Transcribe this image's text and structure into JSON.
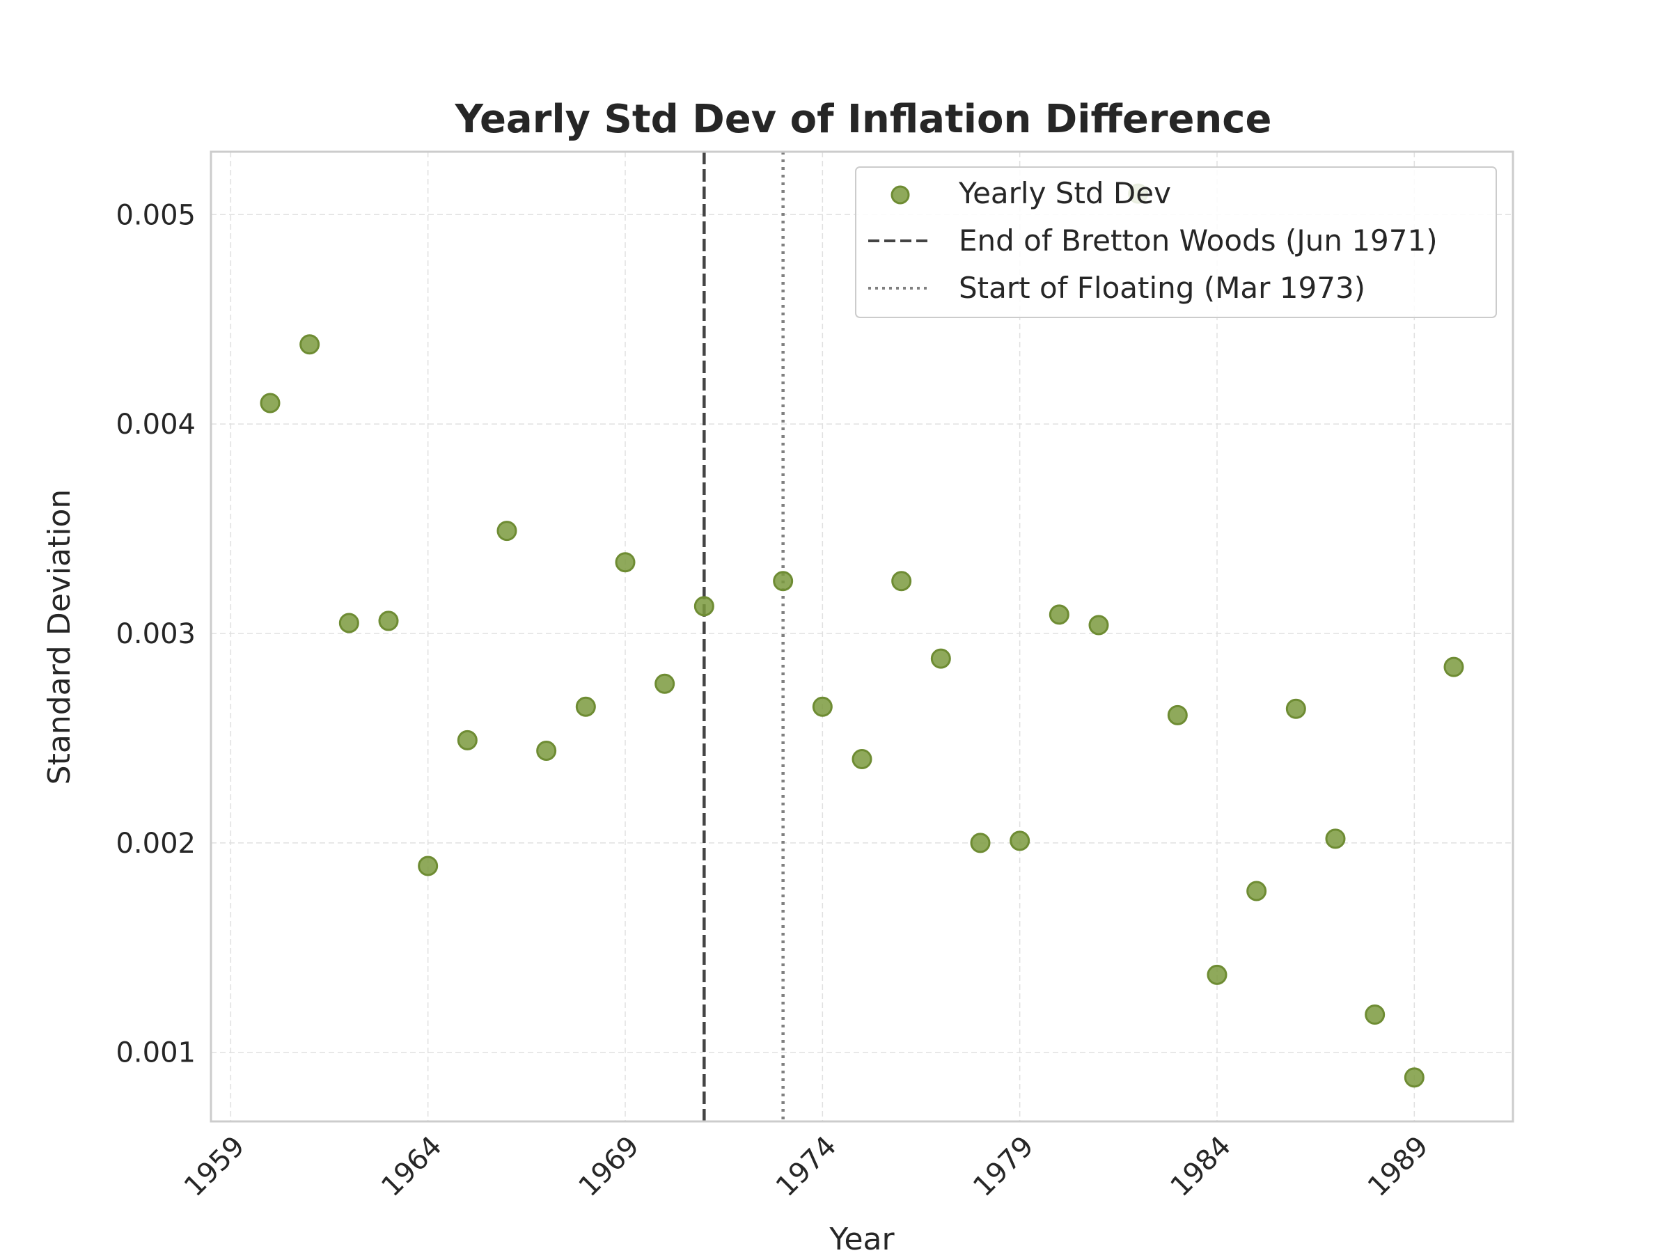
{
  "chart_data": {
    "type": "scatter",
    "title": "Yearly Std Dev of Inflation Difference",
    "xlabel": "Year",
    "ylabel": "Standard Deviation",
    "xlim": [
      1958.5,
      1991.5
    ],
    "ylim": [
      0.00067,
      0.0053
    ],
    "xticks": [
      "1959",
      "1964",
      "1969",
      "1974",
      "1979",
      "1984",
      "1989"
    ],
    "yticks": [
      "0.001",
      "0.002",
      "0.003",
      "0.004",
      "0.005"
    ],
    "grid": true,
    "legend_position": "top-right",
    "series": [
      {
        "name": "Yearly Std Dev",
        "color": "#7b9a3e",
        "x": [
          1960,
          1961,
          1962,
          1963,
          1964,
          1965,
          1966,
          1967,
          1968,
          1969,
          1970,
          1971,
          1973,
          1974,
          1975,
          1976,
          1977,
          1978,
          1979,
          1980,
          1981,
          1982,
          1983,
          1984,
          1985,
          1986,
          1987,
          1988,
          1989,
          1990
        ],
        "y": [
          0.0041,
          0.00438,
          0.00305,
          0.00306,
          0.00189,
          0.00249,
          0.00349,
          0.00244,
          0.00265,
          0.00334,
          0.00276,
          0.00313,
          0.00325,
          0.00265,
          0.0024,
          0.00325,
          0.00288,
          0.002,
          0.00201,
          0.00309,
          0.00304,
          0.0051,
          0.00261,
          0.00137,
          0.00177,
          0.00264,
          0.00202,
          0.00118,
          0.00088,
          0.00284
        ]
      }
    ],
    "reference_lines": [
      {
        "name": "End of Bretton Woods (Jun 1971)",
        "x": 1971,
        "style": "dashed",
        "color": "#444444"
      },
      {
        "name": "Start of Floating (Mar 1973)",
        "x": 1973,
        "style": "dotted",
        "color": "#808080"
      }
    ]
  }
}
